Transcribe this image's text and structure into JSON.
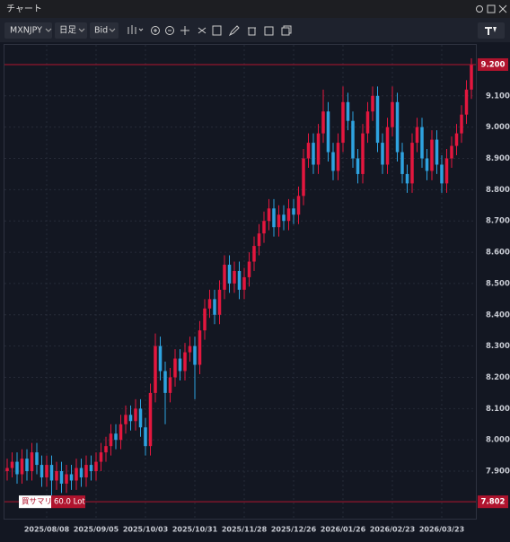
{
  "window": {
    "title": "チャート"
  },
  "toolbar": {
    "symbol": "MXNJPY",
    "timeframe": "日足",
    "price_type": "Bid"
  },
  "chart_data": {
    "type": "candlestick",
    "categories": [
      null,
      null,
      null,
      null,
      null,
      null,
      null,
      null,
      "2025/08/08",
      null,
      null,
      null,
      null,
      null,
      null,
      null,
      null,
      null,
      "2025/09/05",
      null,
      null,
      null,
      null,
      null,
      null,
      null,
      null,
      null,
      "2025/10/03",
      null,
      null,
      null,
      null,
      null,
      null,
      null,
      null,
      null,
      "2025/10/31",
      null,
      null,
      null,
      null,
      null,
      null,
      null,
      null,
      null,
      "2025/11/28",
      null,
      null,
      null,
      null,
      null,
      null,
      null,
      null,
      null,
      "2025/12/26",
      null,
      null,
      null,
      null,
      null,
      null,
      null,
      null,
      null,
      "2026/01/26",
      null,
      null,
      null,
      null,
      null,
      null,
      null,
      null,
      null,
      "2026/02/23",
      null,
      null,
      null,
      null,
      null,
      null,
      null,
      null,
      null,
      "2026/03/23",
      null,
      null,
      null,
      null,
      null,
      null
    ],
    "open": [
      7.9,
      7.91,
      7.93,
      7.89,
      7.94,
      7.9,
      7.96,
      7.92,
      7.88,
      7.92,
      7.87,
      7.9,
      7.86,
      7.89,
      7.87,
      7.91,
      7.88,
      7.92,
      7.9,
      7.93,
      7.96,
      7.98,
      8.02,
      8.0,
      8.05,
      8.08,
      8.06,
      8.1,
      8.04,
      7.98,
      8.15,
      8.3,
      8.22,
      8.15,
      8.2,
      8.26,
      8.22,
      8.28,
      8.3,
      8.24,
      8.35,
      8.42,
      8.45,
      8.4,
      8.48,
      8.56,
      8.5,
      8.54,
      8.48,
      8.52,
      8.57,
      8.62,
      8.66,
      8.7,
      8.74,
      8.68,
      8.72,
      8.7,
      8.74,
      8.72,
      8.78,
      8.9,
      8.95,
      8.88,
      8.98,
      9.05,
      8.92,
      8.86,
      8.95,
      9.08,
      9.02,
      8.9,
      8.85,
      8.98,
      9.05,
      9.1,
      8.95,
      8.88,
      9.0,
      9.08,
      8.92,
      8.85,
      8.82,
      8.95,
      9.0,
      8.9,
      8.86,
      8.96,
      8.88,
      8.82,
      8.9,
      8.94,
      8.98,
      9.04,
      9.12
    ],
    "high": [
      7.94,
      7.96,
      7.96,
      7.97,
      7.97,
      7.99,
      7.99,
      7.95,
      7.95,
      7.95,
      7.93,
      7.93,
      7.92,
      7.92,
      7.94,
      7.94,
      7.95,
      7.95,
      7.96,
      7.99,
      8.01,
      8.05,
      8.05,
      8.08,
      8.11,
      8.11,
      8.13,
      8.13,
      8.07,
      8.18,
      8.34,
      8.33,
      8.25,
      8.23,
      8.29,
      8.29,
      8.31,
      8.33,
      8.33,
      8.38,
      8.45,
      8.48,
      8.48,
      8.51,
      8.59,
      8.59,
      8.57,
      8.57,
      8.55,
      8.6,
      8.65,
      8.69,
      8.73,
      8.77,
      8.77,
      8.75,
      8.75,
      8.77,
      8.77,
      8.81,
      8.93,
      8.98,
      8.98,
      9.01,
      9.12,
      9.08,
      8.95,
      8.98,
      9.13,
      9.11,
      9.05,
      8.93,
      9.01,
      9.08,
      9.13,
      9.13,
      8.98,
      9.03,
      9.13,
      9.11,
      8.95,
      8.88,
      8.98,
      9.03,
      9.03,
      8.93,
      8.99,
      8.99,
      8.91,
      8.93,
      8.97,
      9.01,
      9.07,
      9.15,
      9.22
    ],
    "low": [
      7.87,
      7.88,
      7.86,
      7.86,
      7.87,
      7.87,
      7.89,
      7.85,
      7.85,
      7.82,
      7.84,
      7.83,
      7.83,
      7.84,
      7.84,
      7.85,
      7.85,
      7.87,
      7.87,
      7.9,
      7.93,
      7.95,
      7.97,
      7.97,
      8.02,
      8.03,
      8.03,
      8.01,
      7.95,
      7.95,
      8.12,
      8.19,
      8.05,
      8.12,
      8.17,
      8.19,
      8.19,
      8.25,
      8.13,
      8.21,
      8.32,
      8.39,
      8.37,
      8.37,
      8.45,
      8.47,
      8.47,
      8.45,
      8.45,
      8.49,
      8.54,
      8.59,
      8.63,
      8.67,
      8.65,
      8.65,
      8.67,
      8.67,
      8.69,
      8.69,
      8.75,
      8.87,
      8.85,
      8.85,
      8.95,
      8.89,
      8.83,
      8.83,
      8.92,
      8.99,
      8.87,
      8.82,
      8.82,
      8.95,
      9.02,
      8.92,
      8.85,
      8.85,
      8.97,
      8.89,
      8.82,
      8.79,
      8.79,
      8.92,
      8.87,
      8.83,
      8.83,
      8.85,
      8.79,
      8.79,
      8.87,
      8.91,
      8.95,
      9.01,
      9.09
    ],
    "close": [
      7.91,
      7.93,
      7.89,
      7.94,
      7.9,
      7.96,
      7.92,
      7.88,
      7.92,
      7.87,
      7.9,
      7.86,
      7.89,
      7.87,
      7.91,
      7.88,
      7.92,
      7.9,
      7.93,
      7.96,
      7.98,
      8.02,
      8.0,
      8.05,
      8.08,
      8.06,
      8.1,
      8.04,
      7.98,
      8.15,
      8.3,
      8.22,
      8.15,
      8.2,
      8.26,
      8.22,
      8.28,
      8.3,
      8.24,
      8.35,
      8.42,
      8.45,
      8.4,
      8.48,
      8.56,
      8.5,
      8.54,
      8.48,
      8.52,
      8.57,
      8.62,
      8.66,
      8.7,
      8.74,
      8.68,
      8.72,
      8.7,
      8.74,
      8.72,
      8.78,
      8.9,
      8.95,
      8.88,
      8.98,
      9.05,
      8.92,
      8.86,
      8.95,
      9.08,
      9.02,
      8.9,
      8.85,
      8.98,
      9.05,
      9.1,
      8.95,
      8.88,
      9.0,
      9.08,
      8.92,
      8.85,
      8.82,
      8.95,
      9.0,
      8.9,
      8.86,
      8.96,
      8.88,
      8.82,
      8.9,
      8.94,
      8.98,
      9.04,
      9.12,
      9.2
    ],
    "up_color": "#e3173e",
    "down_color": "#2ea3e0",
    "ylim": [
      7.748,
      9.263
    ],
    "yticks": [
      {
        "value": 7.9,
        "label": "7.900"
      },
      {
        "value": 8.0,
        "label": "8.000"
      },
      {
        "value": 8.1,
        "label": "8.100"
      },
      {
        "value": 8.2,
        "label": "8.200"
      },
      {
        "value": 8.3,
        "label": "8.300"
      },
      {
        "value": 8.4,
        "label": "8.400"
      },
      {
        "value": 8.5,
        "label": "8.500"
      },
      {
        "value": 8.6,
        "label": "8.600"
      },
      {
        "value": 8.7,
        "label": "8.700"
      },
      {
        "value": 8.8,
        "label": "8.800"
      },
      {
        "value": 8.9,
        "label": "8.900"
      },
      {
        "value": 9.0,
        "label": "9.000"
      },
      {
        "value": 9.1,
        "label": "9.100"
      }
    ],
    "grid": true,
    "price_lines": [
      {
        "value": 9.2,
        "label": "9.200"
      },
      {
        "value": 7.802,
        "label": "7.802",
        "side": "買サマリ",
        "lot": "60.0 Lot"
      }
    ]
  }
}
